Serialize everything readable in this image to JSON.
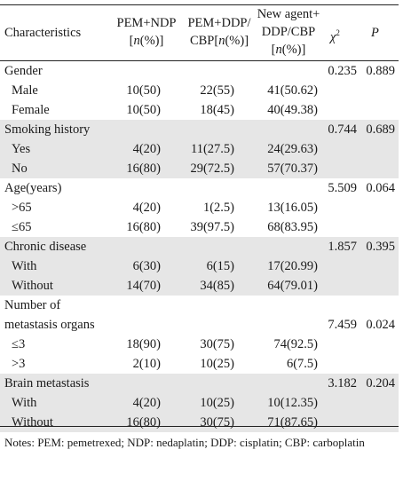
{
  "headers": {
    "characteristics": "Characteristics",
    "col1_line1": "PEM+NDP",
    "col1_line2_pre": "[",
    "col1_line2_em": "n",
    "col1_line2_post": "(%)]",
    "col2_line1": "PEM+DDP/",
    "col2_line2_pre": "CBP[",
    "col2_line2_em": "n",
    "col2_line2_post": "(%)]",
    "col3_line1": "New agent+",
    "col3_line2": "DDP/CBP",
    "col3_line3_pre": "[",
    "col3_line3_em": "n",
    "col3_line3_post": "(%)]",
    "chi_base": "χ",
    "chi_sup": "2",
    "p": "P"
  },
  "groups": [
    {
      "label": "Gender",
      "chi2": "0.235",
      "p": "0.889",
      "shaded": false,
      "rows": [
        {
          "label": "Male",
          "c1": "10(50)",
          "c2": "22(55)",
          "c3": "41(50.62)"
        },
        {
          "label": "Female",
          "c1": "10(50)",
          "c2": "18(45)",
          "c3": "40(49.38)"
        }
      ]
    },
    {
      "label": "Smoking history",
      "chi2": "0.744",
      "p": "0.689",
      "shaded": true,
      "rows": [
        {
          "label": "Yes",
          "c1": "4(20)",
          "c2": "11(27.5)",
          "c3": "24(29.63)"
        },
        {
          "label": "No",
          "c1": "16(80)",
          "c2": "29(72.5)",
          "c3": "57(70.37)"
        }
      ]
    },
    {
      "label": "Age(years)",
      "chi2": "5.509",
      "p": "0.064",
      "shaded": false,
      "rows": [
        {
          "label": ">65",
          "c1": "4(20)",
          "c2": "1(2.5)",
          "c3": "13(16.05)"
        },
        {
          "label": "≤65",
          "c1": "16(80)",
          "c2": "39(97.5)",
          "c3": "68(83.95)"
        }
      ]
    },
    {
      "label": "Chronic disease",
      "chi2": "1.857",
      "p": "0.395",
      "shaded": true,
      "rows": [
        {
          "label": "With",
          "c1": "6(30)",
          "c2": "6(15)",
          "c3": "17(20.99)"
        },
        {
          "label": "Without",
          "c1": "14(70)",
          "c2": "34(85)",
          "c3": "64(79.01)"
        }
      ]
    },
    {
      "label": "Number of",
      "label2": "metastasis organs",
      "chi2": "7.459",
      "p": "0.024",
      "shaded": false,
      "rows": [
        {
          "label": "≤3",
          "c1": "18(90)",
          "c2": "30(75)",
          "c3": "74(92.5)"
        },
        {
          "label": ">3",
          "c1": "2(10)",
          "c2": "10(25)",
          "c3": "6(7.5)"
        }
      ]
    },
    {
      "label": "Brain metastasis",
      "chi2": "3.182",
      "p": "0.204",
      "shaded": true,
      "rows": [
        {
          "label": "With",
          "c1": "4(20)",
          "c2": "10(25)",
          "c3": "10(12.35)"
        },
        {
          "label": "Without",
          "c1": "16(80)",
          "c2": "30(75)",
          "c3": "71(87.65)"
        }
      ]
    }
  ],
  "notes": "Notes: PEM: pemetrexed; NDP: nedaplatin; DDP: cisplatin; CBP: carboplatin"
}
